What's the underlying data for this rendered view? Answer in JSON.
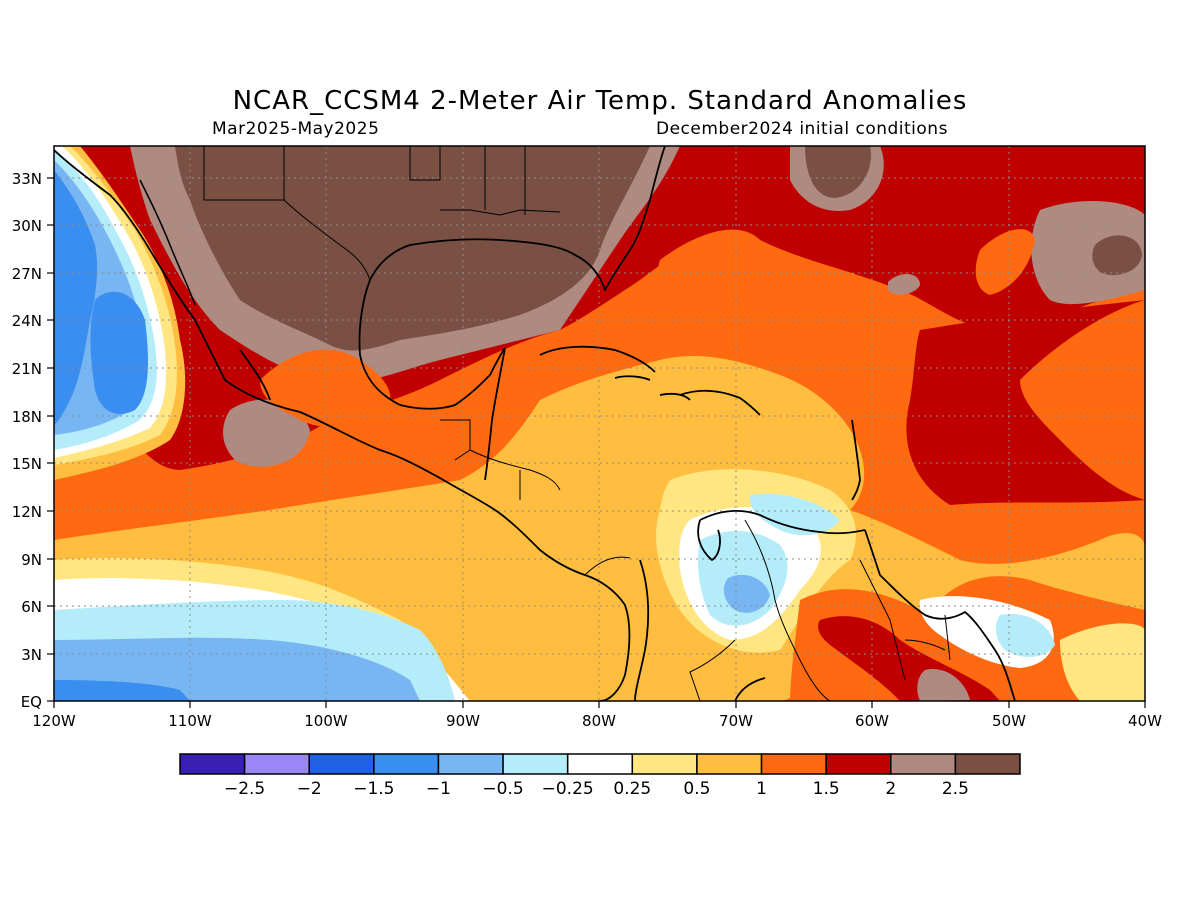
{
  "header": {
    "title": "NCAR_CCSM4 2-Meter Air Temp. Standard Anomalies",
    "period": "Mar2025-May2025",
    "init": "December2024 initial conditions"
  },
  "map": {
    "region": "Gulf of Mexico, Caribbean and Central America",
    "lon_range": [
      -120,
      -40
    ],
    "lat_range": [
      0,
      35
    ],
    "lon_tick_labels": [
      "120W",
      "110W",
      "100W",
      "90W",
      "80W",
      "70W",
      "60W",
      "50W",
      "40W"
    ],
    "lat_tick_labels": [
      "EQ",
      "3N",
      "6N",
      "9N",
      "12N",
      "15N",
      "18N",
      "21N",
      "24N",
      "27N",
      "30N",
      "33N"
    ],
    "grid": "dotted"
  },
  "colorbar": {
    "labels": [
      "-2.5",
      "-2",
      "-1.5",
      "-1",
      "-0.5",
      "-0.25",
      "0.25",
      "0.5",
      "1",
      "1.5",
      "2",
      "2.5"
    ],
    "colors": [
      "#3a1fb4",
      "#9b87f5",
      "#1f62e6",
      "#3a8ef0",
      "#78b6f3",
      "#b4ecfa",
      "#ffffff",
      "#ffe680",
      "#ffbe40",
      "#ff6a10",
      "#c00000",
      "#ae8a80",
      "#7a5045"
    ]
  }
}
